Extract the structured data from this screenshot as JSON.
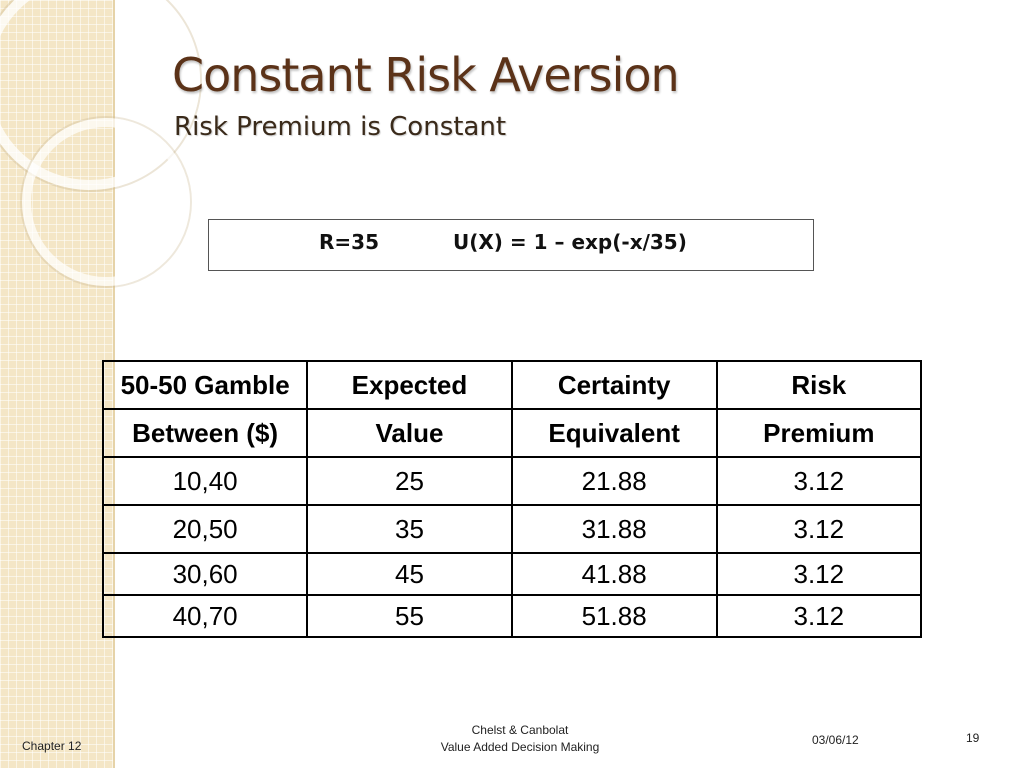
{
  "title": "Constant Risk Aversion",
  "subtitle": "Risk Premium is Constant",
  "formula": {
    "r_value": "R=35",
    "utility": "U(X) = 1 – exp(-x/35)"
  },
  "table": {
    "headers_line1": [
      "50-50 Gamble",
      "Expected",
      "Certainty",
      "Risk"
    ],
    "headers_line2": [
      "Between ($)",
      "Value",
      "Equivalent",
      "Premium"
    ],
    "rows": [
      [
        "10,40",
        "25",
        "21.88",
        "3.12"
      ],
      [
        "20,50",
        "35",
        "31.88",
        "3.12"
      ],
      [
        "30,60",
        "45",
        "41.88",
        "3.12"
      ],
      [
        "40,70",
        "55",
        "51.88",
        "3.12"
      ]
    ]
  },
  "footer": {
    "chapter": "Chapter 12",
    "authors": "Chelst & Canbolat",
    "book": "Value Added Decision Making",
    "date": "03/06/12",
    "page": "19"
  }
}
